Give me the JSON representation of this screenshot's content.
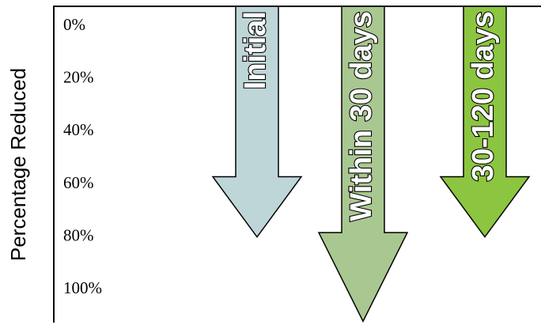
{
  "chart_data": {
    "type": "arrow",
    "y_label": "Percentage Reduced",
    "categories": [
      "Initial",
      "Within 30 days",
      "30-120 days"
    ],
    "values": [
      80,
      112,
      80
    ],
    "colors": [
      "#bfd6d9",
      "#a9c790",
      "#8cc540"
    ],
    "ylim": [
      -7.5,
      112.5
    ],
    "yticks": [
      {
        "value": 0,
        "label": "0%"
      },
      {
        "value": 20,
        "label": "20%"
      },
      {
        "value": 40,
        "label": "40%"
      },
      {
        "value": 60,
        "label": "60%"
      },
      {
        "value": 80,
        "label": "80%"
      },
      {
        "value": 100,
        "label": "100%"
      }
    ],
    "y_inverted": true
  }
}
